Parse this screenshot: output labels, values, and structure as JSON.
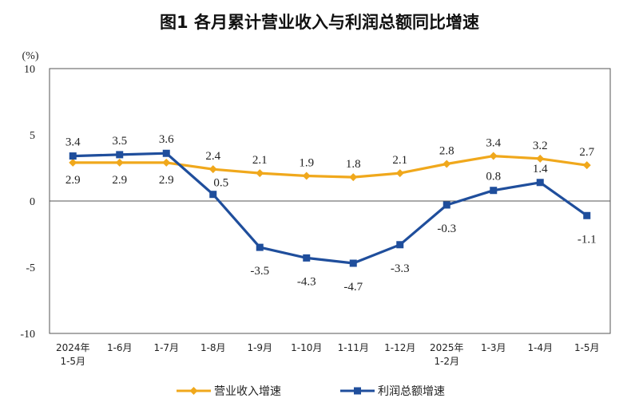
{
  "chart_data": {
    "type": "line",
    "title": "图1  各月累计营业收入与利润总额同比增速",
    "ylabel": "(%)",
    "ylim": [
      -10,
      10
    ],
    "yticks": [
      10,
      5,
      0,
      -5,
      -10
    ],
    "grid": false,
    "legend_position": "bottom",
    "categories": [
      [
        "2024年",
        "1-5月"
      ],
      [
        "1-6月"
      ],
      [
        "1-7月"
      ],
      [
        "1-8月"
      ],
      [
        "1-9月"
      ],
      [
        "1-10月"
      ],
      [
        "1-11月"
      ],
      [
        "1-12月"
      ],
      [
        "2025年",
        "1-2月"
      ],
      [
        "1-3月"
      ],
      [
        "1-4月"
      ],
      [
        "1-5月"
      ]
    ],
    "series": [
      {
        "name": "营业收入增速",
        "color": "#F0A81C",
        "marker": "diamond",
        "values": [
          2.9,
          2.9,
          2.9,
          2.4,
          2.1,
          1.9,
          1.8,
          2.1,
          2.8,
          3.4,
          3.2,
          2.7
        ],
        "labels": [
          "2.9",
          "2.9",
          "2.9",
          "2.4",
          "2.1",
          "1.9",
          "1.8",
          "2.1",
          "2.8",
          "3.4",
          "3.2",
          "2.7"
        ]
      },
      {
        "name": "利润总额增速",
        "color": "#1F4E9C",
        "marker": "square",
        "values": [
          3.4,
          3.5,
          3.6,
          0.5,
          -3.5,
          -4.3,
          -4.7,
          -3.3,
          -0.3,
          0.8,
          1.4,
          -1.1
        ],
        "labels": [
          "3.4",
          "3.5",
          "3.6",
          "0.5",
          "-3.5",
          "-4.3",
          "-4.7",
          "-3.3",
          "-0.3",
          "0.8",
          "1.4",
          "-1.1"
        ]
      }
    ]
  }
}
